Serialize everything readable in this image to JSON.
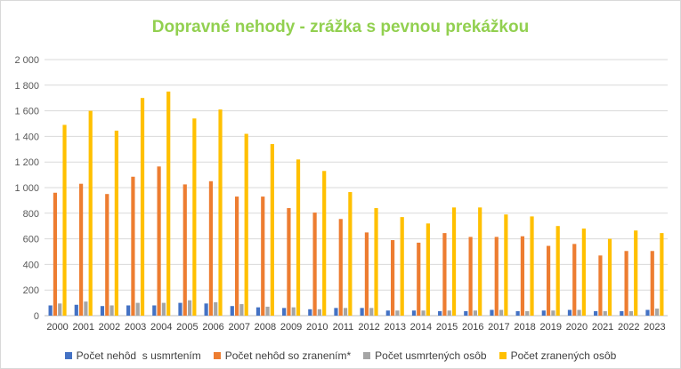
{
  "chart_data": {
    "type": "bar",
    "title": "Dopravné nehody - zrážka s pevnou prekážkou",
    "xlabel": "",
    "ylabel": "",
    "ylim": [
      0,
      2000
    ],
    "yticks": [
      "0",
      "200",
      "400",
      "600",
      "800",
      "1 000",
      "1 200",
      "1 400",
      "1 600",
      "1 800",
      "2 000"
    ],
    "grid": true,
    "legend_position": "bottom",
    "categories": [
      "2000",
      "2001",
      "2002",
      "2003",
      "2004",
      "2005",
      "2006",
      "2007",
      "2008",
      "2009",
      "2010",
      "2011",
      "2012",
      "2013",
      "2014",
      "2015",
      "2016",
      "2017",
      "2018",
      "2019",
      "2020",
      "2021",
      "2022",
      "2023"
    ],
    "series": [
      {
        "name": "Počet nehôd  s usmrtením",
        "color": "#4472c4",
        "values": [
          80,
          85,
          75,
          80,
          80,
          100,
          95,
          75,
          65,
          60,
          50,
          60,
          60,
          40,
          40,
          35,
          35,
          45,
          35,
          40,
          45,
          35,
          35,
          45
        ]
      },
      {
        "name": "Počet nehôd so zranením*",
        "color": "#ed7d31",
        "values": [
          960,
          1030,
          950,
          1085,
          1165,
          1025,
          1050,
          930,
          930,
          840,
          805,
          755,
          650,
          590,
          570,
          645,
          615,
          615,
          620,
          545,
          560,
          470,
          505,
          505
        ]
      },
      {
        "name": "Počet usmrtených osôb",
        "color": "#a5a5a5",
        "values": [
          95,
          110,
          80,
          100,
          100,
          120,
          105,
          90,
          70,
          65,
          50,
          60,
          60,
          40,
          40,
          40,
          40,
          45,
          35,
          40,
          45,
          35,
          35,
          55
        ]
      },
      {
        "name": "Počet zranených osôb",
        "color": "#ffc000",
        "values": [
          1490,
          1600,
          1445,
          1700,
          1750,
          1540,
          1610,
          1420,
          1340,
          1220,
          1130,
          965,
          840,
          770,
          720,
          845,
          845,
          790,
          775,
          700,
          680,
          600,
          665,
          645
        ]
      }
    ]
  }
}
